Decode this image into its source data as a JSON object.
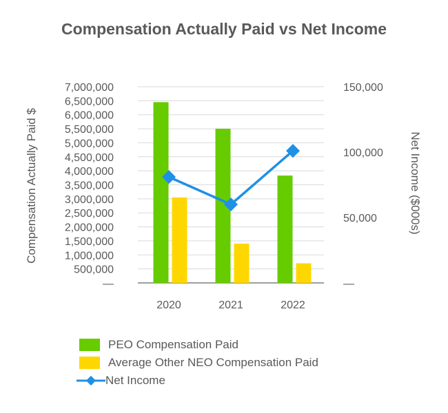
{
  "chart_data": {
    "type": "bar",
    "title": "Compensation Actually Paid vs Net Income",
    "categories": [
      "2020",
      "2021",
      "2022"
    ],
    "ylabel": "Compensation Actually Paid $",
    "y2label": "Net Income ($000s)",
    "ylim": [
      0,
      7000000
    ],
    "y2lim": [
      0,
      150000
    ],
    "yticks": [
      "—",
      "500,000",
      "1,000,000",
      "1,500,000",
      "2,000,000",
      "2,500,000",
      "3,000,000",
      "3,500,000",
      "4,000,000",
      "4,500,000",
      "5,000,000",
      "5,500,000",
      "6,000,000",
      "6,500,000",
      "7,000,000"
    ],
    "y2ticks": [
      "—",
      "50,000",
      "100,000",
      "150,000"
    ],
    "grid": true,
    "legend_position": "bottom",
    "series": [
      {
        "name": "PEO Compensation Paid",
        "type": "bar",
        "color": "#66CC00",
        "values": [
          6450000,
          5500000,
          3830000
        ]
      },
      {
        "name": "Average Other NEO Compensation Paid",
        "type": "bar",
        "color": "#FFD700",
        "values": [
          3050000,
          1400000,
          700000
        ]
      },
      {
        "name": "Net Income",
        "type": "line",
        "axis": "y2",
        "color": "#1E90E6",
        "marker": "diamond",
        "values": [
          81000,
          60000,
          101000
        ]
      }
    ]
  }
}
